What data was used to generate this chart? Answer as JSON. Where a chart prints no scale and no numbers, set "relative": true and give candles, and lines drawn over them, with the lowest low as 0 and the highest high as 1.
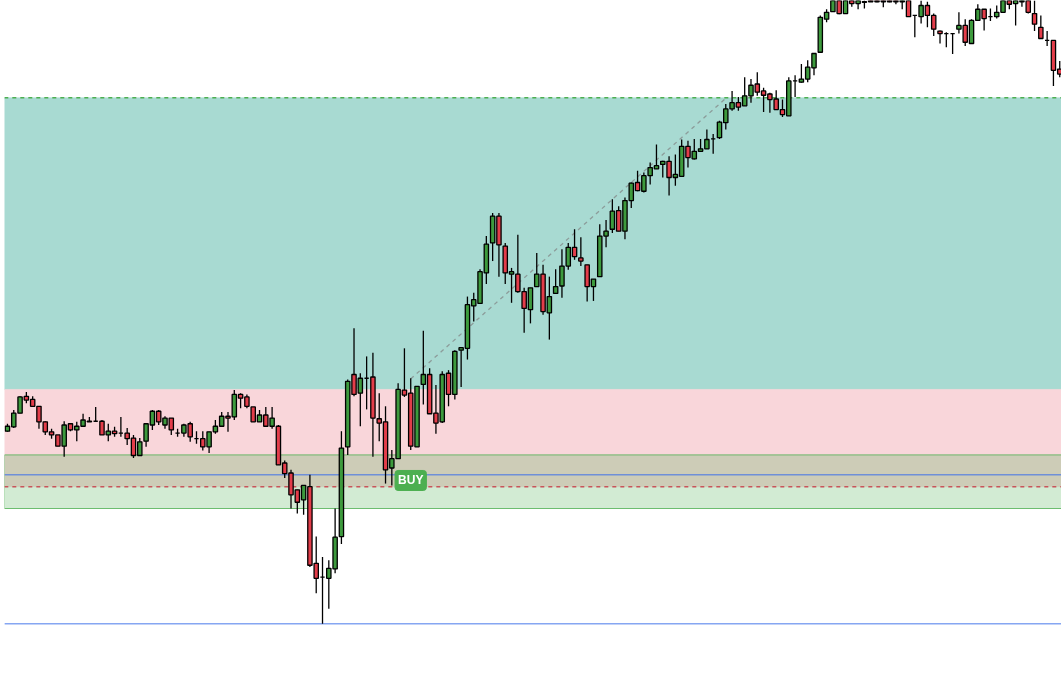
{
  "chart_data": {
    "type": "candlestick",
    "relative": true,
    "categories": [
      null,
      null,
      null,
      null,
      null,
      null,
      null,
      null,
      null,
      null,
      null,
      null,
      null,
      null,
      null,
      null,
      null,
      null,
      null,
      null,
      null,
      null,
      null,
      null,
      null,
      null,
      null,
      null,
      null,
      null,
      null,
      null,
      null,
      null,
      null,
      null,
      null,
      null,
      null,
      null,
      null,
      null,
      null,
      null,
      null,
      null,
      null,
      null,
      null,
      null,
      null,
      null,
      null,
      null,
      null,
      null,
      null,
      null,
      null,
      null,
      null,
      null,
      null,
      null,
      null,
      null,
      null,
      null,
      null,
      null,
      null,
      null,
      null,
      null,
      null,
      null,
      null,
      null,
      null,
      null,
      null,
      null,
      null,
      null,
      null,
      null,
      null,
      null,
      null,
      null,
      null,
      null,
      null,
      null,
      null,
      null,
      null,
      null,
      null,
      null,
      null,
      null,
      null,
      null,
      null,
      null,
      null,
      null,
      null,
      null,
      null,
      null,
      null,
      null,
      null,
      null,
      null,
      null,
      null,
      null,
      null,
      null,
      null,
      null,
      null,
      null,
      null,
      null,
      null,
      null,
      null,
      null,
      null,
      null,
      null,
      null,
      null,
      null,
      null,
      null,
      null,
      null,
      null,
      null,
      null,
      null,
      null,
      null,
      null,
      null,
      null,
      null,
      null,
      null,
      null,
      null,
      null,
      null,
      null,
      null,
      null,
      null,
      null,
      null,
      null,
      null,
      null,
      null
    ],
    "colors": [
      "#3d9a3d",
      "#3d9a3d",
      "#3d9a3d",
      "#e33d4a",
      "#e33d4a",
      "#e33d4a",
      "#e33d4a",
      "#e33d4a",
      "#e33d4a",
      "#3d9a3d",
      "#e33d4a",
      "#3d9a3d",
      "#3d9a3d",
      "#3d9a3d",
      "#000000",
      "#e33d4a",
      "#3d9a3d",
      "#e33d4a",
      "#000000",
      "#e33d4a",
      "#e33d4a",
      "#3d9a3d",
      "#3d9a3d",
      "#3d9a3d",
      "#e33d4a",
      "#3d9a3d",
      "#e33d4a",
      "#000000",
      "#3d9a3d",
      "#e33d4a",
      "#000000",
      "#e33d4a",
      "#3d9a3d",
      "#3d9a3d",
      "#3d9a3d",
      "#e33d4a",
      "#3d9a3d",
      "#e33d4a",
      "#e33d4a",
      "#e33d4a",
      "#3d9a3d",
      "#e33d4a",
      "#3d9a3d",
      "#e33d4a",
      "#e33d4a",
      "#e33d4a",
      "#e33d4a",
      "#3d9a3d",
      "#e33d4a",
      "#e33d4a",
      "#000000",
      "#3d9a3d",
      "#3d9a3d",
      "#3d9a3d",
      "#3d9a3d",
      "#e33d4a",
      "#3d9a3d",
      "#000000",
      "#e33d4a",
      "#e33d4a",
      "#e33d4a",
      "#3d9a3d",
      "#3d9a3d",
      "#e33d4a",
      "#e33d4a",
      "#3d9a3d",
      "#3d9a3d",
      "#e33d4a",
      "#e33d4a",
      "#3d9a3d",
      "#e33d4a",
      "#3d9a3d",
      "#3d9a3d",
      "#3d9a3d",
      "#3d9a3d",
      "#3d9a3d",
      "#3d9a3d",
      "#3d9a3d",
      "#e33d4a",
      "#e33d4a",
      "#3d9a3d",
      "#e33d4a",
      "#e33d4a",
      "#3d9a3d",
      "#3d9a3d",
      "#e33d4a",
      "#3d9a3d",
      "#3d9a3d",
      "#3d9a3d",
      "#3d9a3d",
      "#e33d4a",
      "#e33d4a",
      "#e33d4a",
      "#3d9a3d",
      "#3d9a3d",
      "#3d9a3d",
      "#3d9a3d",
      "#e33d4a",
      "#3d9a3d",
      "#3d9a3d",
      "#e33d4a",
      "#3d9a3d",
      "#3d9a3d",
      "#3d9a3d",
      "#3d9a3d",
      "#e33d4a",
      "#3d9a3d",
      "#3d9a3d",
      "#e33d4a",
      "#3d9a3d",
      "#3d9a3d",
      "#3d9a3d",
      "#000000",
      "#3d9a3d",
      "#3d9a3d",
      "#3d9a3d",
      "#e33d4a",
      "#3d9a3d",
      "#3d9a3d",
      "#e33d4a",
      "#e33d4a",
      "#e33d4a",
      "#e33d4a",
      "#e33d4a",
      "#3d9a3d",
      "#000000",
      "#3d9a3d",
      "#3d9a3d",
      "#3d9a3d",
      "#3d9a3d",
      "#3d9a3d",
      "#3d9a3d",
      "#e33d4a",
      "#3d9a3d",
      "#e33d4a",
      "#3d9a3d",
      "#e33d4a",
      "#e33d4a",
      "#e33d4a",
      "#e33d4a",
      "#e33d4a",
      "#e33d4a",
      "#3d9a3d",
      "#e33d4a",
      "#000000",
      "#3d9a3d",
      "#e33d4a",
      "#e33d4a",
      "#e33d4a",
      "#000000",
      "#000000",
      "#3d9a3d",
      "#e33d4a",
      "#3d9a3d",
      "#3d9a3d",
      "#e33d4a",
      "#000000",
      "#3d9a3d",
      "#3d9a3d",
      "#e33d4a",
      "#3d9a3d",
      "#3d9a3d",
      "#e33d4a",
      "#e33d4a",
      "#e33d4a",
      "#000000",
      "#e33d4a",
      "#e33d4a"
    ],
    "ohlc": [
      [
        0.309,
        0.321,
        0.308,
        0.317
      ],
      [
        0.316,
        0.343,
        0.314,
        0.338
      ],
      [
        0.338,
        0.365,
        0.338,
        0.364
      ],
      [
        0.365,
        0.372,
        0.354,
        0.359
      ],
      [
        0.36,
        0.365,
        0.348,
        0.349
      ],
      [
        0.349,
        0.349,
        0.313,
        0.324
      ],
      [
        0.324,
        0.325,
        0.303,
        0.308
      ],
      [
        0.308,
        0.313,
        0.297,
        0.303
      ],
      [
        0.303,
        0.303,
        0.285,
        0.285
      ],
      [
        0.285,
        0.325,
        0.268,
        0.319
      ],
      [
        0.321,
        0.321,
        0.309,
        0.311
      ],
      [
        0.311,
        0.324,
        0.293,
        0.317
      ],
      [
        0.317,
        0.337,
        0.316,
        0.327
      ],
      [
        0.324,
        0.332,
        0.324,
        0.325
      ],
      [
        0.325,
        0.348,
        0.325,
        0.325
      ],
      [
        0.325,
        0.327,
        0.303,
        0.303
      ],
      [
        0.303,
        0.321,
        0.293,
        0.309
      ],
      [
        0.309,
        0.316,
        0.3,
        0.305
      ],
      [
        0.306,
        0.332,
        0.3,
        0.306
      ],
      [
        0.306,
        0.314,
        0.287,
        0.297
      ],
      [
        0.298,
        0.303,
        0.266,
        0.27
      ],
      [
        0.27,
        0.298,
        0.27,
        0.292
      ],
      [
        0.293,
        0.321,
        0.284,
        0.321
      ],
      [
        0.319,
        0.343,
        0.311,
        0.341
      ],
      [
        0.341,
        0.343,
        0.319,
        0.324
      ],
      [
        0.319,
        0.333,
        0.313,
        0.33
      ],
      [
        0.33,
        0.33,
        0.303,
        0.311
      ],
      [
        0.306,
        0.313,
        0.3,
        0.306
      ],
      [
        0.306,
        0.321,
        0.3,
        0.319
      ],
      [
        0.321,
        0.324,
        0.292,
        0.3
      ],
      [
        0.297,
        0.309,
        0.289,
        0.297
      ],
      [
        0.297,
        0.309,
        0.278,
        0.284
      ],
      [
        0.284,
        0.308,
        0.274,
        0.308
      ],
      [
        0.308,
        0.327,
        0.305,
        0.317
      ],
      [
        0.317,
        0.34,
        0.317,
        0.333
      ],
      [
        0.333,
        0.34,
        0.308,
        0.33
      ],
      [
        0.332,
        0.375,
        0.327,
        0.368
      ],
      [
        0.368,
        0.37,
        0.346,
        0.362
      ],
      [
        0.364,
        0.368,
        0.346,
        0.349
      ],
      [
        0.348,
        0.348,
        0.324,
        0.324
      ],
      [
        0.324,
        0.343,
        0.324,
        0.335
      ],
      [
        0.335,
        0.348,
        0.317,
        0.317
      ],
      [
        0.317,
        0.348,
        0.313,
        0.33
      ],
      [
        0.317,
        0.319,
        0.255,
        0.255
      ],
      [
        0.258,
        0.262,
        0.234,
        0.241
      ],
      [
        0.242,
        0.247,
        0.185,
        0.207
      ],
      [
        0.215,
        0.215,
        0.177,
        0.195
      ],
      [
        0.199,
        0.222,
        0.175,
        0.222
      ],
      [
        0.22,
        0.239,
        0.091,
        0.094
      ],
      [
        0.097,
        0.14,
        0.049,
        0.073
      ],
      [
        0.075,
        0.107,
        0,
        0.075
      ],
      [
        0.073,
        0.102,
        0.024,
        0.089
      ],
      [
        0.088,
        0.185,
        0.081,
        0.139
      ],
      [
        0.14,
        0.309,
        0.128,
        0.282
      ],
      [
        0.284,
        0.392,
        0.271,
        0.389
      ],
      [
        0.4,
        0.474,
        0.365,
        0.368
      ],
      [
        0.37,
        0.402,
        0.317,
        0.394
      ],
      [
        0.394,
        0.429,
        0.344,
        0.394
      ],
      [
        0.396,
        0.435,
        0.268,
        0.33
      ],
      [
        0.329,
        0.37,
        0.293,
        0.322
      ],
      [
        0.324,
        0.349,
        0.225,
        0.247
      ],
      [
        0.25,
        0.279,
        0.222,
        0.265
      ],
      [
        0.265,
        0.386,
        0.265,
        0.376
      ],
      [
        0.375,
        0.442,
        0.364,
        0.367
      ],
      [
        0.37,
        0.394,
        0.279,
        0.285
      ],
      [
        0.284,
        0.381,
        0.284,
        0.381
      ],
      [
        0.384,
        0.47,
        0.352,
        0.4
      ],
      [
        0.4,
        0.41,
        0.337,
        0.337
      ],
      [
        0.338,
        0.383,
        0.305,
        0.322
      ],
      [
        0.324,
        0.405,
        0.322,
        0.4
      ],
      [
        0.402,
        0.407,
        0.349,
        0.368
      ],
      [
        0.368,
        0.439,
        0.36,
        0.437
      ],
      [
        0.439,
        0.443,
        0.38,
        0.443
      ],
      [
        0.442,
        0.525,
        0.424,
        0.512
      ],
      [
        0.51,
        0.531,
        0.485,
        0.52
      ],
      [
        0.514,
        0.569,
        0.514,
        0.565
      ],
      [
        0.563,
        0.622,
        0.545,
        0.609
      ],
      [
        0.611,
        0.659,
        0.582,
        0.654
      ],
      [
        0.654,
        0.659,
        0.557,
        0.608
      ],
      [
        0.606,
        0.611,
        0.545,
        0.563
      ],
      [
        0.561,
        0.571,
        0.515,
        0.565
      ],
      [
        0.561,
        0.624,
        0.531,
        0.533
      ],
      [
        0.533,
        0.539,
        0.467,
        0.506
      ],
      [
        0.504,
        0.539,
        0.482,
        0.539
      ],
      [
        0.541,
        0.595,
        0.541,
        0.561
      ],
      [
        0.561,
        0.576,
        0.496,
        0.501
      ],
      [
        0.499,
        0.557,
        0.456,
        0.525
      ],
      [
        0.53,
        0.569,
        0.53,
        0.541
      ],
      [
        0.542,
        0.601,
        0.523,
        0.574
      ],
      [
        0.574,
        0.611,
        0.568,
        0.604
      ],
      [
        0.604,
        0.633,
        0.584,
        0.589
      ],
      [
        0.587,
        0.62,
        0.574,
        0.582
      ],
      [
        0.576,
        0.576,
        0.517,
        0.541
      ],
      [
        0.541,
        0.553,
        0.518,
        0.553
      ],
      [
        0.557,
        0.641,
        0.557,
        0.622
      ],
      [
        0.622,
        0.648,
        0.604,
        0.63
      ],
      [
        0.633,
        0.681,
        0.627,
        0.662
      ],
      [
        0.663,
        0.67,
        0.63,
        0.63
      ],
      [
        0.63,
        0.684,
        0.617,
        0.679
      ],
      [
        0.679,
        0.708,
        0.667,
        0.707
      ],
      [
        0.708,
        0.727,
        0.694,
        0.695
      ],
      [
        0.694,
        0.724,
        0.692,
        0.719
      ],
      [
        0.719,
        0.74,
        0.705,
        0.732
      ],
      [
        0.73,
        0.769,
        0.73,
        0.735
      ],
      [
        0.737,
        0.743,
        0.716,
        0.742
      ],
      [
        0.742,
        0.75,
        0.687,
        0.716
      ],
      [
        0.716,
        0.753,
        0.703,
        0.721
      ],
      [
        0.718,
        0.777,
        0.718,
        0.766
      ],
      [
        0.766,
        0.775,
        0.732,
        0.748
      ],
      [
        0.746,
        0.778,
        0.745,
        0.758
      ],
      [
        0.758,
        0.778,
        0.758,
        0.762
      ],
      [
        0.762,
        0.793,
        0.762,
        0.777
      ],
      [
        0.778,
        0.786,
        0.754,
        0.778
      ],
      [
        0.78,
        0.807,
        0.778,
        0.805
      ],
      [
        0.804,
        0.834,
        0.793,
        0.826
      ],
      [
        0.826,
        0.855,
        0.823,
        0.836
      ],
      [
        0.836,
        0.845,
        0.823,
        0.829
      ],
      [
        0.831,
        0.877,
        0.831,
        0.847
      ],
      [
        0.847,
        0.874,
        0.836,
        0.864
      ],
      [
        0.866,
        0.885,
        0.847,
        0.853
      ],
      [
        0.855,
        0.86,
        0.821,
        0.848
      ],
      [
        0.85,
        0.852,
        0.82,
        0.841
      ],
      [
        0.842,
        0.856,
        0.825,
        0.825
      ],
      [
        0.825,
        0.841,
        0.813,
        0.817
      ],
      [
        0.815,
        0.877,
        0.815,
        0.871
      ],
      [
        0.871,
        0.88,
        0.845,
        0.871
      ],
      [
        0.869,
        0.898,
        0.868,
        0.874
      ],
      [
        0.874,
        0.904,
        0.869,
        0.893
      ],
      [
        0.892,
        0.915,
        0.88,
        0.915
      ],
      [
        0.917,
        0.976,
        0.917,
        0.973
      ],
      [
        0.97,
        0.986,
        0.965,
        0.981
      ],
      [
        0.982,
        1,
        0.982,
        1
      ],
      [
        1,
        1,
        0.978,
        0.979
      ],
      [
        0.979,
        1,
        0.979,
        1
      ],
      [
        1,
        1,
        0.99,
        0.995
      ],
      [
        0.995,
        1,
        0.986,
        1
      ],
      [
        0.998,
        1,
        0.987,
        0.997
      ],
      [
        1,
        1,
        0.998,
        0.998
      ],
      [
        1,
        1,
        0.997,
        0.998
      ],
      [
        1,
        1,
        0.989,
        0.998
      ],
      [
        1,
        1,
        0.997,
        0.998
      ],
      [
        1,
        1,
        0.994,
        0.998
      ],
      [
        0.998,
        1,
        0.986,
        1
      ],
      [
        1,
        1,
        0.974,
        0.974
      ],
      [
        0.976,
        0.976,
        0.941,
        0.976
      ],
      [
        0.974,
        1,
        0.963,
        0.992
      ],
      [
        0.992,
        0.998,
        0.957,
        0.976
      ],
      [
        0.976,
        0.979,
        0.943,
        0.954
      ],
      [
        0.951,
        0.952,
        0.931,
        0.947
      ],
      [
        0.947,
        0.949,
        0.925,
        0.947
      ],
      [
        0.947,
        0.947,
        0.914,
        0.947
      ],
      [
        0.954,
        0.981,
        0.947,
        0.96
      ],
      [
        0.96,
        0.97,
        0.927,
        0.933
      ],
      [
        0.931,
        0.97,
        0.931,
        0.968
      ],
      [
        0.968,
        0.994,
        0.968,
        0.986
      ],
      [
        0.986,
        0.986,
        0.952,
        0.971
      ],
      [
        0.974,
        0.987,
        0.967,
        0.974
      ],
      [
        0.974,
        0.992,
        0.971,
        0.981
      ],
      [
        0.981,
        1,
        0.981,
        1
      ],
      [
        1,
        1,
        0.986,
        0.994
      ],
      [
        0.995,
        1,
        0.96,
        1
      ],
      [
        0.998,
        1,
        0.99,
        1
      ],
      [
        1,
        1,
        0.979,
        0.981
      ],
      [
        0.979,
        1,
        0.951,
        0.962
      ],
      [
        0.957,
        0.976,
        0.939,
        0.939
      ],
      [
        0.936,
        0.951,
        0.927,
        0.936
      ],
      [
        0.936,
        0.936,
        0.863,
        0.888
      ],
      [
        0.89,
        0.903,
        0.877,
        0.882
      ]
    ],
    "series": [
      {
        "type": "line",
        "values": [
          null,
          null,
          null,
          null,
          null,
          null,
          null,
          null,
          null,
          null,
          null,
          null,
          null,
          null,
          null,
          null,
          null,
          null,
          null,
          null,
          null,
          null,
          null,
          null,
          null,
          null,
          null,
          null,
          null,
          null,
          null,
          null,
          null,
          null,
          null,
          null,
          null,
          null,
          null,
          null,
          null,
          null,
          null,
          null,
          null,
          null,
          null,
          null,
          null,
          null,
          null,
          null,
          null,
          null,
          null,
          null,
          null,
          null,
          null,
          null,
          null,
          null,
          null,
          null,
          0.393,
          null,
          null,
          null,
          null,
          null,
          null,
          null,
          null,
          null,
          null,
          null,
          null,
          null,
          null,
          null,
          null,
          null,
          null,
          null,
          null,
          null,
          null,
          null,
          null,
          null,
          null,
          null,
          null,
          null,
          null,
          null,
          null,
          null,
          null,
          null,
          null,
          null,
          null,
          null,
          null,
          null,
          null,
          null,
          null,
          null,
          null,
          null,
          null,
          null,
          0.843,
          null,
          null,
          null,
          null,
          null,
          null,
          null,
          null,
          null,
          null,
          null,
          null,
          null,
          null,
          null,
          null,
          null,
          null,
          null,
          null,
          null,
          null,
          null,
          null,
          null,
          null,
          null,
          null,
          null,
          null,
          null,
          null,
          null,
          null,
          null,
          null,
          null,
          null,
          null,
          null,
          null,
          null,
          null,
          null,
          null,
          null,
          null,
          null,
          null,
          null,
          null,
          null,
          null
        ],
        "color": "#8c9c9a",
        "line_style": "dashed"
      }
    ],
    "bands": [
      {
        "axis": "y",
        "from": 0.376,
        "to": 0.844,
        "color": "#a8dad2"
      },
      {
        "axis": "y",
        "from": 0.22,
        "to": 0.376,
        "color": "#f9d6da"
      },
      {
        "axis": "y",
        "from": 0.185,
        "to": 0.271,
        "color": "#4caf50"
      }
    ],
    "ref_lines": [
      {
        "axis": "y",
        "value": 0.239,
        "color": "#6f8fd8",
        "line_style": "solid"
      },
      {
        "axis": "y",
        "value": 0,
        "color": "#86a6f2",
        "line_style": "solid"
      },
      {
        "axis": "y",
        "value": 0.844,
        "color": "#4caf50",
        "line_style": "dashed"
      },
      {
        "axis": "y",
        "value": 0.22,
        "color": "#c9545a",
        "line_style": "dashed"
      }
    ],
    "annotations": [
      {
        "text": "BUY",
        "y": 0.23
      }
    ],
    "grid": false
  }
}
